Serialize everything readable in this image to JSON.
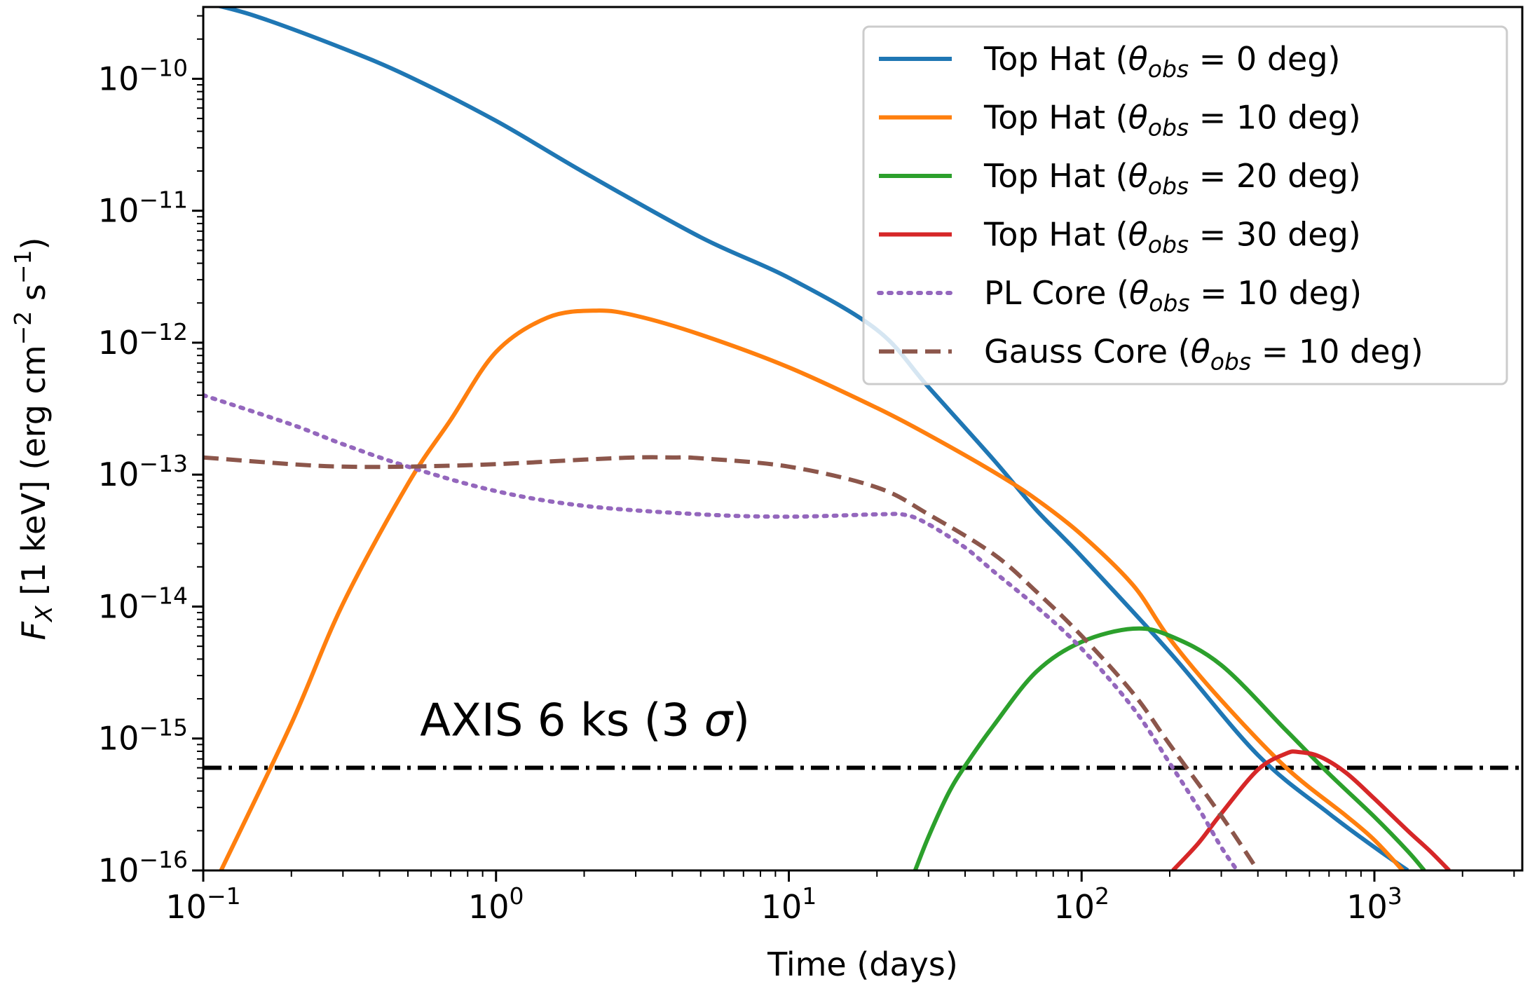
{
  "chart_data": {
    "type": "line",
    "title": "",
    "xlabel": "Time (days)",
    "ylabel": {
      "base": "F",
      "sub": "X",
      "rest": " [1 keV] (erg cm",
      "sup1": "−2",
      "mid": " s",
      "sup2": "−1",
      "end": ")"
    },
    "xscale": "log",
    "yscale": "log",
    "xlim": [
      0.1,
      3200
    ],
    "ylim": [
      1e-16,
      3.5e-10
    ],
    "x_ticks": [
      {
        "value": 0.1,
        "base": "10",
        "exp": "−1"
      },
      {
        "value": 1,
        "base": "10",
        "exp": "0"
      },
      {
        "value": 10,
        "base": "10",
        "exp": "1"
      },
      {
        "value": 100,
        "base": "10",
        "exp": "2"
      },
      {
        "value": 1000,
        "base": "10",
        "exp": "3"
      }
    ],
    "y_ticks": [
      {
        "value": 1e-16,
        "base": "10",
        "exp": "−16"
      },
      {
        "value": 1e-15,
        "base": "10",
        "exp": "−15"
      },
      {
        "value": 1e-14,
        "base": "10",
        "exp": "−14"
      },
      {
        "value": 1e-13,
        "base": "10",
        "exp": "−13"
      },
      {
        "value": 1e-12,
        "base": "10",
        "exp": "−12"
      },
      {
        "value": 1e-11,
        "base": "10",
        "exp": "−11"
      },
      {
        "value": 1e-10,
        "base": "10",
        "exp": "−10"
      }
    ],
    "legend_position": "top-right",
    "series": [
      {
        "name": "Top Hat (θobs = 0 deg)",
        "label": {
          "pre": "Top Hat (",
          "theta": "θ",
          "sub": "obs",
          "post": " = 0 deg)"
        },
        "color": "#1f77b4",
        "style": "solid",
        "x": [
          0.1,
          0.15,
          0.3,
          0.5,
          1,
          2,
          5,
          10,
          20,
          30,
          50,
          70,
          100,
          200,
          400,
          700,
          1000,
          1300
        ],
        "y": [
          3.8e-10,
          3e-10,
          1.7e-10,
          1.05e-10,
          4.8e-11,
          1.95e-11,
          6.3e-12,
          3.1e-12,
          1.25e-12,
          4.6e-13,
          1.3e-13,
          5.4e-14,
          2.4e-14,
          4.5e-15,
          7.5e-16,
          2.7e-16,
          1.5e-16,
          1e-16
        ]
      },
      {
        "name": "Top Hat (θobs = 10 deg)",
        "label": {
          "pre": "Top Hat (",
          "theta": "θ",
          "sub": "obs",
          "post": " = 10 deg)"
        },
        "color": "#ff7f0e",
        "style": "solid",
        "x": [
          0.115,
          0.2,
          0.3,
          0.5,
          0.7,
          1,
          1.5,
          2.2,
          3,
          5,
          10,
          20,
          30,
          50,
          70,
          100,
          150,
          200,
          300,
          500,
          800,
          1000,
          1250
        ],
        "y": [
          1e-16,
          1.3e-15,
          1.05e-14,
          8.5e-14,
          2.6e-13,
          8.5e-13,
          1.55e-12,
          1.75e-12,
          1.6e-12,
          1.15e-12,
          6.5e-13,
          3.2e-13,
          2e-13,
          1.05e-13,
          6.5e-14,
          3.5e-14,
          1.45e-14,
          5.7e-15,
          1.95e-15,
          6e-16,
          2.6e-16,
          1.7e-16,
          1e-16
        ]
      },
      {
        "name": "Top Hat (θobs = 20 deg)",
        "label": {
          "pre": "Top Hat (",
          "theta": "θ",
          "sub": "obs",
          "post": " = 20 deg)"
        },
        "color": "#2ca02c",
        "style": "solid",
        "x": [
          27,
          30,
          35,
          40,
          50,
          70,
          100,
          150,
          200,
          300,
          500,
          700,
          1000,
          1300,
          1480
        ],
        "y": [
          1e-16,
          1.8e-16,
          3.8e-16,
          6.2e-16,
          1.25e-15,
          3.2e-15,
          5.4e-15,
          6.8e-15,
          6e-15,
          3.6e-15,
          1.15e-15,
          5.4e-16,
          2.55e-16,
          1.4e-16,
          1e-16
        ]
      },
      {
        "name": "Top Hat (θobs = 30 deg)",
        "label": {
          "pre": "Top Hat (",
          "theta": "θ",
          "sub": "obs",
          "post": " = 30 deg)"
        },
        "color": "#d62728",
        "style": "solid",
        "x": [
          205,
          250,
          300,
          400,
          500,
          550,
          650,
          800,
          1000,
          1300,
          1550,
          1800
        ],
        "y": [
          1e-16,
          1.6e-16,
          2.7e-16,
          5.8e-16,
          7.7e-16,
          7.9e-16,
          7.3e-16,
          5.5e-16,
          3.5e-16,
          2e-16,
          1.4e-16,
          1e-16
        ]
      },
      {
        "name": "PL Core (θobs = 10 deg)",
        "label": {
          "pre": "PL Core (",
          "theta": "θ",
          "sub": "obs",
          "post": " = 10 deg)"
        },
        "color": "#9467bd",
        "style": "dotted",
        "x": [
          0.1,
          0.2,
          0.3,
          0.5,
          1,
          2,
          5,
          10,
          20,
          25,
          30,
          40,
          50,
          70,
          100,
          150,
          200,
          250,
          300,
          340
        ],
        "y": [
          4e-13,
          2.4e-13,
          1.7e-13,
          1.15e-13,
          7.5e-14,
          5.8e-14,
          5e-14,
          4.8e-14,
          5e-14,
          4.95e-14,
          4.2e-14,
          2.8e-14,
          1.85e-14,
          1e-14,
          4.8e-15,
          1.7e-15,
          6.5e-16,
          3e-16,
          1.5e-16,
          1e-16
        ]
      },
      {
        "name": "Gauss Core (θobs = 10 deg)",
        "label": {
          "pre": "Gauss Core (",
          "theta": "θ",
          "sub": "obs",
          "post": " = 10 deg)"
        },
        "color": "#8c564b",
        "style": "dashed",
        "x": [
          0.1,
          0.2,
          0.3,
          0.5,
          1,
          2,
          3,
          4,
          5,
          10,
          20,
          30,
          50,
          70,
          100,
          150,
          200,
          300,
          400
        ],
        "y": [
          1.35e-13,
          1.2e-13,
          1.15e-13,
          1.15e-13,
          1.2e-13,
          1.3e-13,
          1.35e-13,
          1.35e-13,
          1.33e-13,
          1.15e-13,
          8e-14,
          5e-14,
          2.5e-14,
          1.3e-14,
          6e-15,
          2.2e-15,
          9e-16,
          2.6e-16,
          1e-16
        ]
      }
    ],
    "hline": {
      "y": 6e-16,
      "color": "#000000",
      "style": "dashdot"
    },
    "annotation": {
      "text_pre": "AXIS 6 ks (3 ",
      "sigma": "σ",
      "text_post": ")",
      "x": 0.55,
      "y": 1.05e-15
    }
  }
}
